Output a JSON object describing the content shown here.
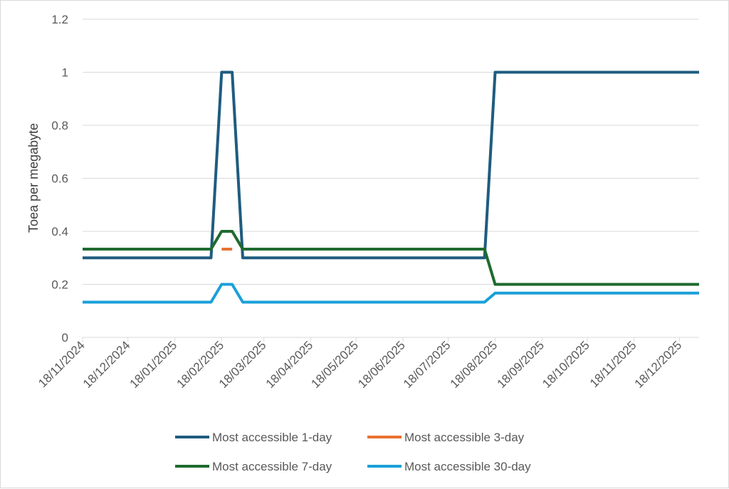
{
  "chart_data": {
    "type": "line",
    "title": "",
    "xlabel": "",
    "ylabel": "Toea per megabyte",
    "ylim": [
      0,
      1.2
    ],
    "yticks": [
      "0",
      "0.2",
      "0.4",
      "0.6",
      "0.8",
      "1",
      "1.2"
    ],
    "xlim": [
      "2024-11-18",
      "2025-12-31"
    ],
    "xticks": [
      "18/11/2024",
      "18/12/2024",
      "18/01/2025",
      "18/02/2025",
      "18/03/2025",
      "18/04/2025",
      "18/05/2025",
      "18/06/2025",
      "18/07/2025",
      "18/08/2025",
      "18/09/2025",
      "18/10/2025",
      "18/11/2025",
      "18/12/2025"
    ],
    "grid": true,
    "legend_position": "bottom",
    "series": [
      {
        "name": "Most accessible 1-day",
        "color": "#1f5c7f",
        "points": [
          [
            "2024-11-18",
            0.3
          ],
          [
            "2025-02-11",
            0.3
          ],
          [
            "2025-02-18",
            1.0
          ],
          [
            "2025-02-25",
            1.0
          ],
          [
            "2025-03-04",
            0.3
          ],
          [
            "2025-08-11",
            0.3
          ],
          [
            "2025-08-18",
            1.0
          ],
          [
            "2025-12-31",
            1.0
          ]
        ]
      },
      {
        "name": "Most accessible 3-day",
        "color": "#e97132",
        "points": [
          [
            "2025-02-18",
            0.333
          ],
          [
            "2025-02-25",
            0.333
          ]
        ]
      },
      {
        "name": "Most accessible 7-day",
        "color": "#1e6b2e",
        "points": [
          [
            "2024-11-18",
            0.333
          ],
          [
            "2025-02-11",
            0.333
          ],
          [
            "2025-02-18",
            0.4
          ],
          [
            "2025-02-25",
            0.4
          ],
          [
            "2025-03-04",
            0.333
          ],
          [
            "2025-08-11",
            0.333
          ],
          [
            "2025-08-18",
            0.2
          ],
          [
            "2025-12-31",
            0.2
          ]
        ]
      },
      {
        "name": "Most accessible 30-day",
        "color": "#1aa0d8",
        "points": [
          [
            "2024-11-18",
            0.133
          ],
          [
            "2025-02-11",
            0.133
          ],
          [
            "2025-02-18",
            0.2
          ],
          [
            "2025-02-25",
            0.2
          ],
          [
            "2025-03-04",
            0.133
          ],
          [
            "2025-08-11",
            0.133
          ],
          [
            "2025-08-18",
            0.167
          ],
          [
            "2025-12-31",
            0.167
          ]
        ]
      }
    ]
  }
}
